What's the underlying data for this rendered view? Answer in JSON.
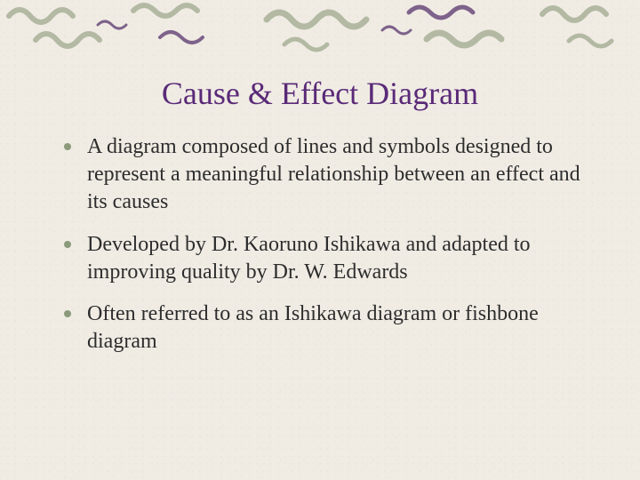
{
  "slide": {
    "title": "Cause & Effect Diagram",
    "bullets": [
      "A diagram composed of lines and symbols designed to represent a meaningful relationship between an effect and its causes",
      "Developed by Dr. Kaoruno Ishikawa and adapted to improving quality by Dr. W. Edwards",
      "Often referred to as an Ishikawa diagram or fishbone diagram"
    ]
  },
  "style": {
    "background_color": "#f0ece4",
    "title_color": "#5a2a78",
    "title_fontsize": 36,
    "body_color": "#2d2d2d",
    "body_fontsize": 24,
    "line_height": 1.3,
    "bullet_color": "#8a9a7a",
    "decoration_color_main": "#a8b098",
    "decoration_color_accent": "#6a4a7a"
  }
}
